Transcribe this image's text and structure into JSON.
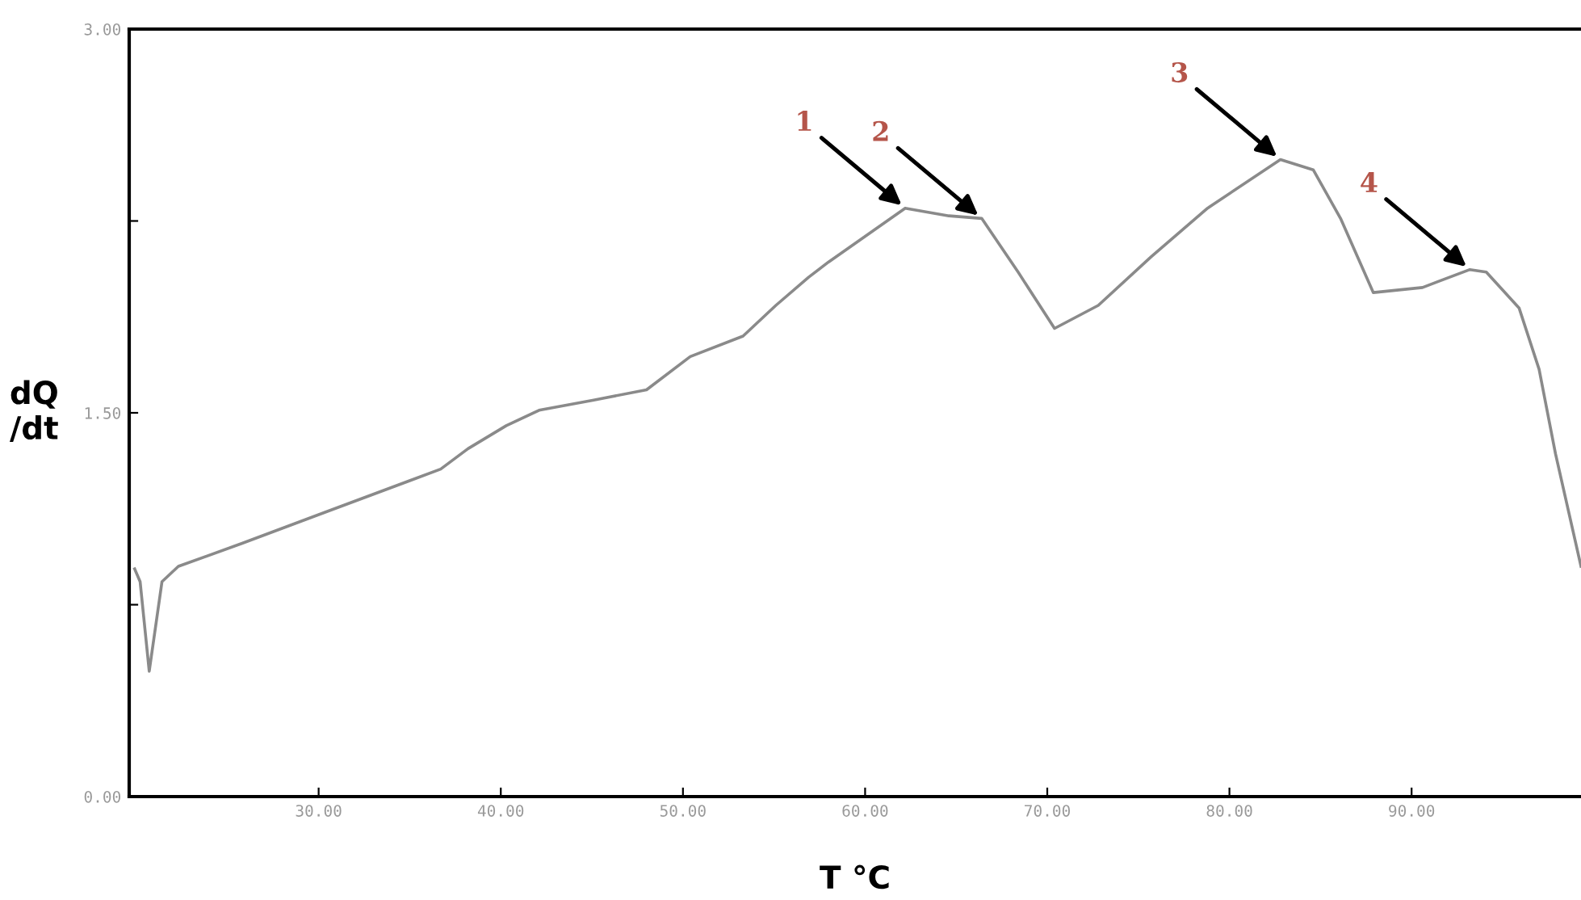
{
  "chart_data": {
    "type": "line",
    "xlabel": "T °C",
    "ylabel": "dQ\n/dt",
    "xlim": [
      19.6,
      99.3
    ],
    "ylim": [
      0,
      3
    ],
    "xticks": [
      {
        "value": 30,
        "label": "30.00"
      },
      {
        "value": 40,
        "label": "40.00"
      },
      {
        "value": 50,
        "label": "50.00"
      },
      {
        "value": 60,
        "label": "60.00"
      },
      {
        "value": 70,
        "label": "70.00"
      },
      {
        "value": 80,
        "label": "80.00"
      },
      {
        "value": 90,
        "label": "90.00"
      }
    ],
    "yticks": [
      {
        "value": 0,
        "label": "0.00"
      },
      {
        "value": 0.75,
        "label": null
      },
      {
        "value": 1.5,
        "label": "1.50"
      },
      {
        "value": 2.25,
        "label": null
      },
      {
        "value": 3,
        "label": "3.00"
      }
    ],
    "grid": false,
    "marker": "none",
    "line_style": "solid",
    "series": [
      {
        "color": "#8a8a8a",
        "x": [
          19.9,
          20.2,
          20.7,
          21.4,
          22.3,
          25.8,
          30.3,
          36.7,
          38.2,
          40.3,
          42.1,
          45.1,
          48.0,
          50.4,
          53.3,
          55.1,
          56.9,
          58.0,
          62.2,
          64.6,
          66.4,
          68.4,
          70.4,
          72.8,
          75.7,
          78.8,
          82.8,
          84.6,
          86.1,
          87.9,
          90.6,
          93.2,
          94.1,
          95.9,
          97.0,
          97.9,
          99.3
        ],
        "values": [
          0.89,
          0.84,
          0.49,
          0.84,
          0.9,
          0.99,
          1.11,
          1.28,
          1.36,
          1.45,
          1.51,
          1.55,
          1.59,
          1.72,
          1.8,
          1.92,
          2.03,
          2.09,
          2.3,
          2.27,
          2.26,
          2.05,
          1.83,
          1.92,
          2.11,
          2.3,
          2.49,
          2.45,
          2.26,
          1.97,
          1.99,
          2.06,
          2.05,
          1.91,
          1.67,
          1.34,
          0.9
        ]
      }
    ],
    "annotations": [
      {
        "text": "1",
        "x": 62.2,
        "y": 2.3
      },
      {
        "text": "2",
        "x": 66.4,
        "y": 2.26
      },
      {
        "text": "3",
        "x": 82.8,
        "y": 2.49
      },
      {
        "text": "4",
        "x": 93.2,
        "y": 2.06
      }
    ]
  }
}
